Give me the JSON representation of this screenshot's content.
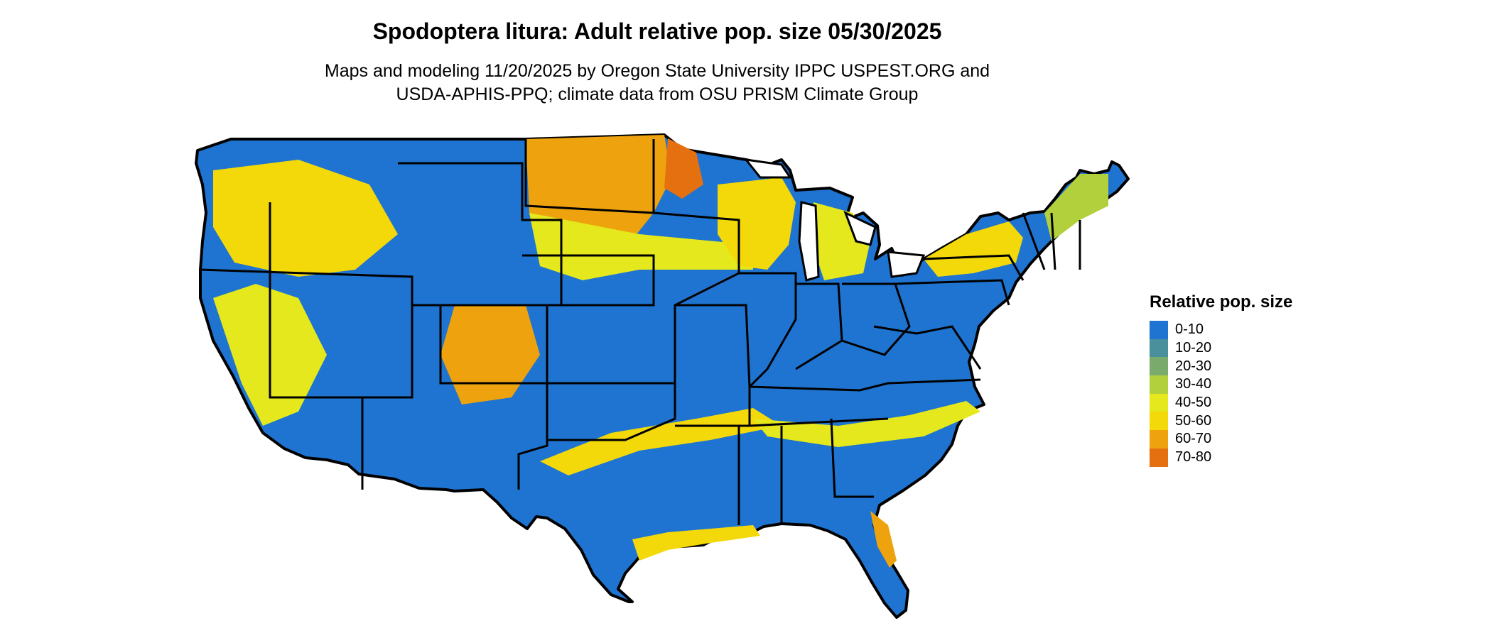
{
  "title": "Spodoptera litura: Adult relative pop. size 05/30/2025",
  "subtitle_line1": "Maps and modeling 11/20/2025 by Oregon State University IPPC USPEST.ORG and",
  "subtitle_line2": "USDA-APHIS-PPQ; climate data from OSU PRISM Climate Group",
  "legend": {
    "title": "Relative pop. size",
    "items": [
      {
        "label": "0-10",
        "color": "#1e74d0"
      },
      {
        "label": "10-20",
        "color": "#4a8f9c"
      },
      {
        "label": "20-30",
        "color": "#7aab6c"
      },
      {
        "label": "30-40",
        "color": "#b2cf3c"
      },
      {
        "label": "40-50",
        "color": "#e4e81c"
      },
      {
        "label": "50-60",
        "color": "#f3d80a"
      },
      {
        "label": "60-70",
        "color": "#eea30e"
      },
      {
        "label": "70-80",
        "color": "#e57010"
      }
    ]
  },
  "colors": {
    "low": "#1e74d0",
    "mid": "#e4e81c",
    "high": "#eea30e",
    "border": "#000000"
  }
}
